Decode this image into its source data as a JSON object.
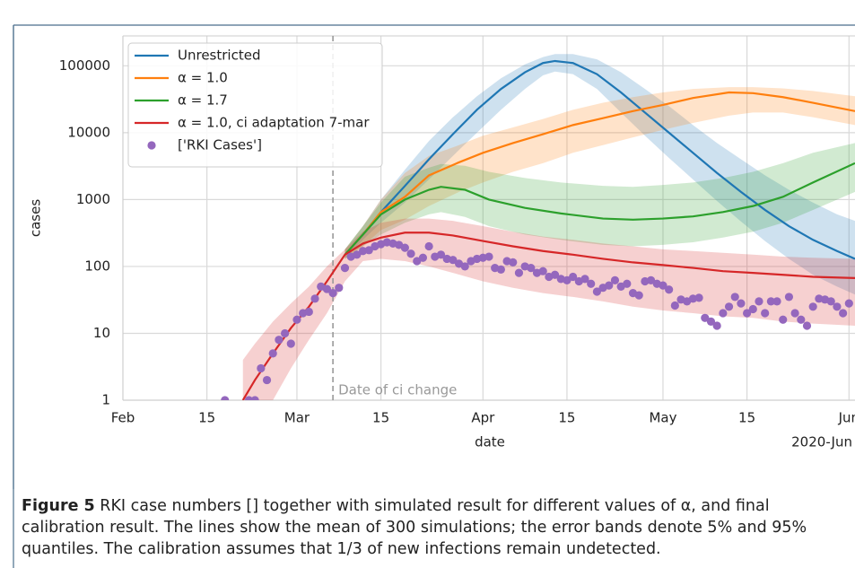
{
  "chart_data": {
    "type": "line",
    "ylabel": "cases",
    "xlabel": "date",
    "x_offset_label": "2020-Jun",
    "yscale": "log",
    "grid": true,
    "legend": "upper left",
    "xlim": [
      0,
      122
    ],
    "ylim": [
      1,
      280000
    ],
    "yticks": [
      1,
      10,
      100,
      1000,
      10000,
      100000
    ],
    "xticks": [
      {
        "value": 0,
        "label": "Feb"
      },
      {
        "value": 14,
        "label": "15"
      },
      {
        "value": 29,
        "label": "Mar"
      },
      {
        "value": 43,
        "label": "15"
      },
      {
        "value": 60,
        "label": "Apr"
      },
      {
        "value": 74,
        "label": "15"
      },
      {
        "value": 90,
        "label": "May"
      },
      {
        "value": 104,
        "label": "15"
      },
      {
        "value": 121,
        "label": "Jun"
      }
    ],
    "vline": {
      "x": 35,
      "label": "Date of ci change",
      "color": "#999999"
    },
    "series": [
      {
        "name": "Unrestricted",
        "color": "#1f77b4",
        "x": [
          37,
          40,
          43,
          47,
          51,
          55,
          59,
          63,
          67,
          70,
          72,
          75,
          79,
          83,
          87,
          91,
          95,
          99,
          103,
          107,
          111,
          115,
          119,
          122
        ],
        "values": [
          150,
          300,
          650,
          1600,
          4000,
          9500,
          22000,
          45000,
          80000,
          110000,
          118000,
          110000,
          75000,
          40000,
          20000,
          10000,
          5000,
          2500,
          1300,
          700,
          400,
          250,
          170,
          130
        ],
        "upper": [
          180,
          400,
          1000,
          2800,
          7500,
          17000,
          35000,
          65000,
          105000,
          135000,
          150000,
          150000,
          125000,
          80000,
          45000,
          25000,
          13000,
          7000,
          4000,
          2300,
          1400,
          900,
          600,
          480
        ],
        "lower": [
          130,
          250,
          450,
          900,
          2000,
          4500,
          10000,
          22000,
          45000,
          72000,
          82000,
          75000,
          45000,
          20000,
          9000,
          4200,
          2000,
          950,
          470,
          240,
          130,
          75,
          50,
          38
        ]
      },
      {
        "name": "α = 1.0",
        "color": "#ff7f0e",
        "x": [
          37,
          40,
          43,
          47,
          51,
          56,
          60,
          65,
          70,
          75,
          80,
          85,
          90,
          95,
          101,
          105,
          110,
          115,
          122
        ],
        "values": [
          150,
          300,
          650,
          1100,
          2300,
          3600,
          5000,
          7000,
          9500,
          13000,
          16500,
          21000,
          26000,
          33000,
          40000,
          39000,
          34000,
          28000,
          21000
        ],
        "upper": [
          180,
          400,
          1000,
          2500,
          4500,
          6500,
          9000,
          12000,
          16000,
          22000,
          28000,
          34000,
          40000,
          45000,
          48000,
          48000,
          46000,
          42000,
          35000
        ],
        "lower": [
          130,
          200,
          350,
          500,
          800,
          1300,
          1800,
          2600,
          3500,
          5000,
          6500,
          8500,
          11000,
          14000,
          18000,
          20000,
          20000,
          17000,
          13000
        ]
      },
      {
        "name": "α = 1.7",
        "color": "#2ca02c",
        "x": [
          37,
          40,
          43,
          47,
          51,
          53,
          57,
          61,
          67,
          73,
          80,
          85,
          90,
          95,
          100,
          105,
          110,
          115,
          122
        ],
        "values": [
          150,
          300,
          600,
          1000,
          1400,
          1550,
          1400,
          1000,
          750,
          620,
          520,
          500,
          520,
          560,
          650,
          800,
          1100,
          1800,
          3500
        ],
        "upper": [
          180,
          400,
          900,
          2200,
          3000,
          3400,
          3200,
          2600,
          2100,
          1800,
          1600,
          1550,
          1650,
          1800,
          2100,
          2600,
          3500,
          5000,
          7000
        ],
        "lower": [
          130,
          200,
          300,
          450,
          600,
          650,
          550,
          400,
          300,
          250,
          210,
          200,
          210,
          230,
          270,
          330,
          450,
          700,
          1300
        ]
      },
      {
        "name": "α = 1.0, ci adaptation 7-mar",
        "color": "#d62728",
        "x": [
          20,
          22,
          25,
          28,
          31,
          34,
          37,
          40,
          43,
          47,
          51,
          55,
          60,
          65,
          70,
          75,
          80,
          85,
          90,
          95,
          100,
          105,
          110,
          115,
          122
        ],
        "values": [
          1,
          2,
          5,
          12,
          25,
          60,
          150,
          220,
          270,
          320,
          320,
          290,
          240,
          200,
          170,
          150,
          130,
          115,
          105,
          95,
          85,
          80,
          75,
          70,
          67
        ],
        "upper": [
          4,
          7,
          15,
          28,
          50,
          100,
          180,
          330,
          450,
          520,
          520,
          480,
          400,
          330,
          280,
          250,
          220,
          200,
          180,
          170,
          160,
          150,
          140,
          135,
          130
        ],
        "lower": [
          0.5,
          0.5,
          1,
          3,
          8,
          20,
          60,
          120,
          130,
          120,
          100,
          80,
          60,
          48,
          40,
          35,
          30,
          25,
          22,
          20,
          18,
          17,
          15,
          14,
          13
        ]
      },
      {
        "name": "['RKI Cases']",
        "color": "#9467bd",
        "kind": "scatter",
        "x": [
          17,
          21,
          22,
          23,
          24,
          25,
          26,
          27,
          28,
          29,
          30,
          31,
          32,
          33,
          34,
          35,
          36,
          37,
          38,
          39,
          40,
          41,
          42,
          43,
          44,
          45,
          46,
          47,
          48,
          49,
          50,
          51,
          52,
          53,
          54,
          55,
          56,
          57,
          58,
          59,
          60,
          61,
          62,
          63,
          64,
          65,
          66,
          67,
          68,
          69,
          70,
          71,
          72,
          73,
          74,
          75,
          76,
          77,
          78,
          79,
          80,
          81,
          82,
          83,
          84,
          85,
          86,
          87,
          88,
          89,
          90,
          91,
          92,
          93,
          94,
          95,
          96,
          97,
          98,
          99,
          100,
          101,
          102,
          103,
          104,
          105,
          106,
          107,
          108,
          109,
          110,
          111,
          112,
          113,
          114,
          115,
          116,
          117,
          118,
          119,
          120,
          121
        ],
        "values": [
          1,
          1,
          1,
          3,
          2,
          5,
          8,
          10,
          7,
          16,
          20,
          21,
          33,
          50,
          46,
          40,
          48,
          95,
          140,
          150,
          170,
          175,
          200,
          215,
          230,
          220,
          210,
          190,
          155,
          120,
          135,
          200,
          140,
          150,
          130,
          125,
          110,
          100,
          120,
          130,
          135,
          140,
          95,
          90,
          120,
          115,
          80,
          100,
          95,
          80,
          85,
          70,
          75,
          65,
          62,
          70,
          60,
          65,
          55,
          42,
          48,
          52,
          62,
          50,
          55,
          40,
          37,
          60,
          62,
          55,
          52,
          45,
          26,
          32,
          30,
          33,
          34,
          17,
          15,
          13,
          20,
          25,
          35,
          28,
          20,
          23,
          30,
          20,
          30,
          30,
          16,
          35,
          20,
          16,
          13,
          25,
          33,
          32,
          30,
          25,
          20,
          28
        ]
      }
    ]
  },
  "caption": {
    "label": "Figure 5",
    "text": "RKI case numbers [] together with simulated result for different values of α, and final calibration result. The lines show the mean of 300 simulations; the error bands denote 5% and 95% quantiles. The calibration assumes that 1/3 of new infections remain undetected."
  }
}
